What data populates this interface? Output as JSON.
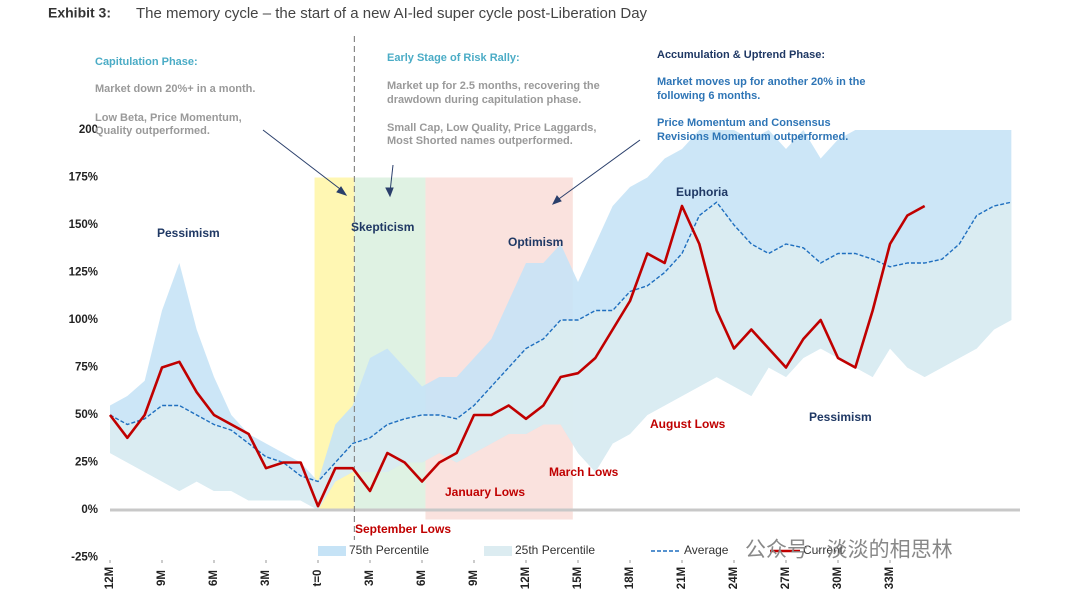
{
  "header": {
    "exhibit": "Exhibit 3:",
    "title": "The memory cycle – the start of a new AI-led super cycle post-Liberation Day"
  },
  "chart_data": {
    "type": "line",
    "x": [
      -12,
      -11,
      -10,
      -9,
      -8,
      -7,
      -6,
      -5,
      -4,
      -3,
      -2,
      -1,
      0,
      1,
      2,
      3,
      4,
      5,
      6,
      7,
      8,
      9,
      10,
      11,
      12,
      13,
      14,
      15,
      16,
      17,
      18,
      19,
      20,
      21,
      22,
      23,
      24,
      25,
      26,
      27,
      28,
      29,
      30,
      31,
      32,
      33,
      34,
      35,
      36,
      37,
      38,
      39,
      40
    ],
    "xlim": [
      -12,
      40.5
    ],
    "xticks": [
      {
        "value": -12,
        "label": "12M"
      },
      {
        "value": -9,
        "label": "9M"
      },
      {
        "value": -6,
        "label": "6M"
      },
      {
        "value": -3,
        "label": "3M"
      },
      {
        "value": 0,
        "label": "t=0"
      },
      {
        "value": 3,
        "label": "3M"
      },
      {
        "value": 6,
        "label": "6M"
      },
      {
        "value": 9,
        "label": "9M"
      },
      {
        "value": 12,
        "label": "12M"
      },
      {
        "value": 15,
        "label": "15M"
      },
      {
        "value": 18,
        "label": "18M"
      },
      {
        "value": 21,
        "label": "21M"
      },
      {
        "value": 24,
        "label": "24M"
      },
      {
        "value": 27,
        "label": "27M"
      },
      {
        "value": 30,
        "label": "30M"
      },
      {
        "value": 33,
        "label": "33M"
      }
    ],
    "ylim": [
      -25,
      200
    ],
    "yticks": [
      {
        "value": -25,
        "label": "-25%"
      },
      {
        "value": 0,
        "label": "0%"
      },
      {
        "value": 25,
        "label": "25%"
      },
      {
        "value": 50,
        "label": "50%"
      },
      {
        "value": 75,
        "label": "75%"
      },
      {
        "value": 100,
        "label": "100%"
      },
      {
        "value": 125,
        "label": "125%"
      },
      {
        "value": 150,
        "label": "150%"
      },
      {
        "value": 175,
        "label": "175%"
      },
      200
    ],
    "series": [
      {
        "name": "75th Percentile",
        "kind": "area",
        "color": "#c6e3f6",
        "values": [
          55,
          60,
          68,
          105,
          130,
          95,
          70,
          50,
          40,
          35,
          30,
          25,
          15,
          45,
          55,
          80,
          85,
          75,
          65,
          70,
          70,
          80,
          90,
          110,
          130,
          130,
          140,
          120,
          140,
          160,
          170,
          175,
          185,
          190,
          200,
          200,
          200,
          195,
          200,
          190,
          200,
          185,
          195,
          200,
          200,
          200,
          200,
          200,
          200,
          200,
          200,
          200,
          200
        ]
      },
      {
        "name": "25th Percentile",
        "kind": "area",
        "color": "#dcecf1",
        "values": [
          30,
          25,
          20,
          15,
          10,
          15,
          10,
          10,
          5,
          5,
          5,
          5,
          0,
          15,
          20,
          20,
          20,
          25,
          25,
          30,
          25,
          30,
          35,
          40,
          40,
          45,
          45,
          30,
          20,
          35,
          40,
          50,
          55,
          60,
          65,
          70,
          65,
          60,
          75,
          70,
          80,
          85,
          80,
          75,
          70,
          85,
          75,
          70,
          75,
          80,
          85,
          95,
          100
        ]
      },
      {
        "name": "Average",
        "kind": "dashed",
        "color": "#1f6fbf",
        "values": [
          50,
          45,
          48,
          55,
          55,
          50,
          45,
          42,
          35,
          28,
          25,
          18,
          15,
          25,
          35,
          38,
          45,
          48,
          50,
          50,
          48,
          55,
          65,
          75,
          85,
          90,
          100,
          100,
          105,
          105,
          115,
          118,
          125,
          135,
          155,
          162,
          150,
          140,
          135,
          140,
          138,
          130,
          135,
          135,
          132,
          128,
          130,
          130,
          132,
          140,
          155,
          160,
          162
        ]
      },
      {
        "name": "Current",
        "kind": "solid",
        "color": "#c00000",
        "values": [
          50,
          38,
          50,
          75,
          78,
          62,
          50,
          45,
          40,
          22,
          25,
          25,
          2,
          22,
          22,
          10,
          30,
          25,
          15,
          25,
          30,
          50,
          50,
          55,
          48,
          55,
          70,
          72,
          80,
          95,
          110,
          135,
          130,
          160,
          140,
          105,
          85,
          95,
          85,
          75,
          90,
          100,
          80,
          75,
          105,
          140,
          155,
          160,
          null,
          null,
          null,
          null,
          null
        ]
      }
    ],
    "shaded_regions": [
      {
        "start": -0.2,
        "end": 2.1,
        "span": [
          0,
          175
        ],
        "color": "#fff6a6"
      },
      {
        "start": 2.1,
        "end": 6.2,
        "span": [
          0,
          175
        ],
        "color": "#d9f0de"
      },
      {
        "start": 6.2,
        "end": 14.7,
        "span": [
          -5,
          175
        ],
        "color": "#f9ddd8"
      }
    ],
    "marker_x": 2.1,
    "annotations": [
      {
        "text": "Capitulation Phase:",
        "color": "#4bacc6"
      },
      {
        "text": "Market down 20%+ in a month.",
        "color": "#9a9a9a"
      },
      {
        "text": "Low Beta, Price Momentum,",
        "color": "#9a9a9a"
      },
      {
        "text": "Quality outperformed.",
        "color": "#9a9a9a"
      },
      {
        "text": "Early Stage of Risk Rally:",
        "color": "#4bacc6"
      },
      {
        "text": "Market up for 2.5 months, recovering the",
        "color": "#9a9a9a"
      },
      {
        "text": "drawdown during capitulation phase.",
        "color": "#9a9a9a"
      },
      {
        "text": "Small Cap, Low Quality, Price Laggards,",
        "color": "#9a9a9a"
      },
      {
        "text": "Most Shorted names outperformed.",
        "color": "#9a9a9a"
      },
      {
        "text": "Accumulation & Uptrend Phase:",
        "color": "#1f3864"
      },
      {
        "text": "Market moves up for another 20% in the",
        "color": "#2e75b6"
      },
      {
        "text": "following 6 months.",
        "color": "#2e75b6"
      },
      {
        "text": "Price Momentum and Consensus",
        "color": "#2e75b6"
      },
      {
        "text": "Revisions Momentum outperformed.",
        "color": "#2e75b6"
      },
      {
        "text": "Pessimism",
        "color": "#1f3864"
      },
      {
        "text": "Skepticism",
        "color": "#1f3864"
      },
      {
        "text": "Optimism",
        "color": "#1f3864"
      },
      {
        "text": "Euphoria",
        "color": "#1f3864"
      },
      {
        "text": "Pessimism",
        "color": "#1f3864"
      },
      {
        "text": "September Lows",
        "color": "#c00000"
      },
      {
        "text": "January Lows",
        "color": "#c00000"
      },
      {
        "text": "March Lows",
        "color": "#c00000"
      },
      {
        "text": "August Lows",
        "color": "#c00000"
      }
    ],
    "watermark": "公众号 · 淡淡的相思林"
  }
}
